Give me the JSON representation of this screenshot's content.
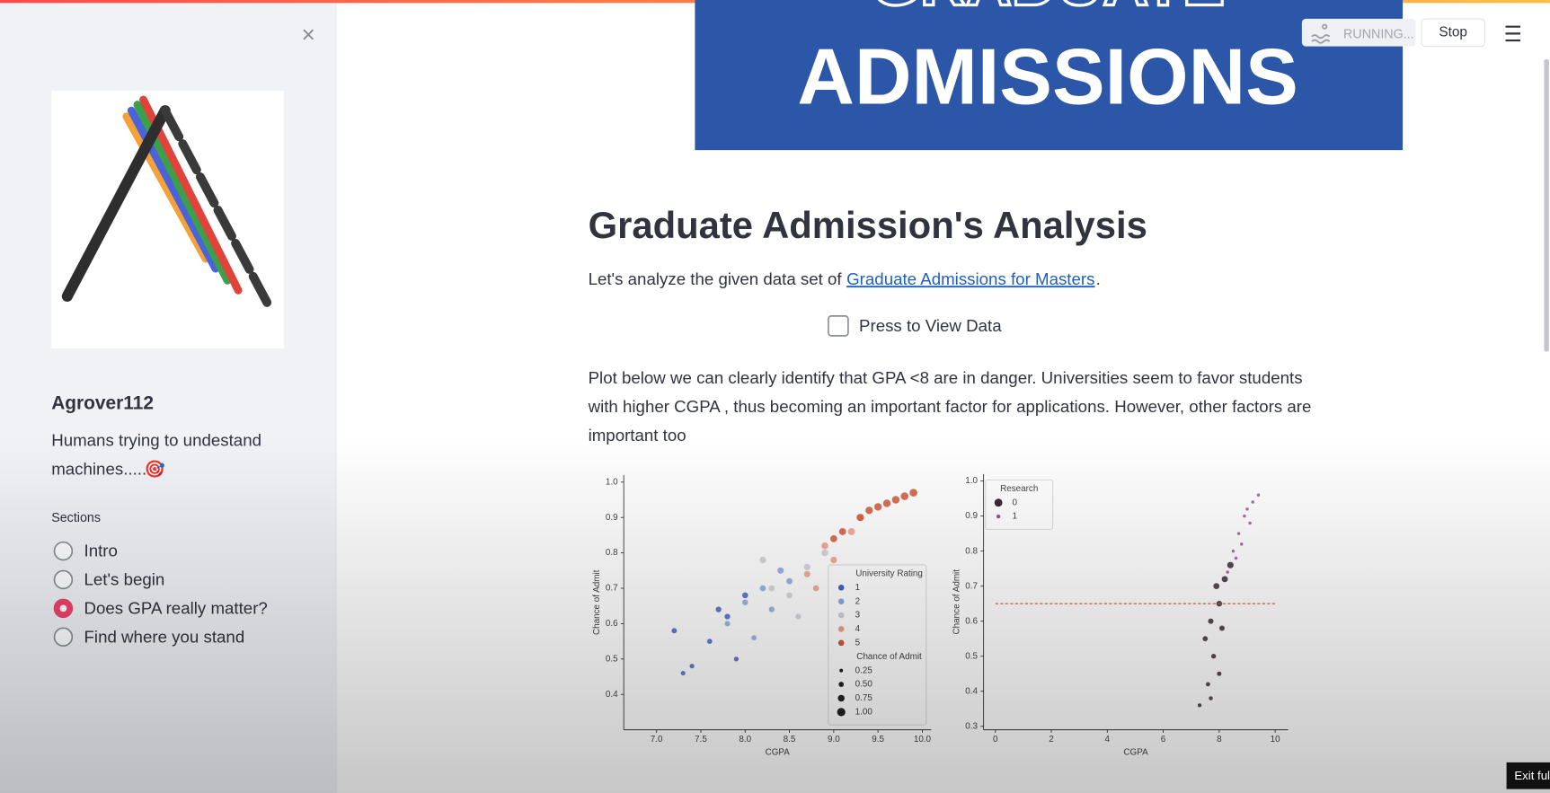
{
  "toolbar": {
    "status": "RUNNING...",
    "stop": "Stop"
  },
  "sidebar": {
    "close": "×",
    "username": "Agrover112",
    "bio": [
      "Humans trying to undestand",
      "machines....."
    ],
    "emoji": "🎯",
    "sections_label": "Sections",
    "options": [
      "Intro",
      "Let's begin",
      "Does GPA really matter?",
      "Find where you stand"
    ],
    "selected": 2
  },
  "banner": {
    "partial": "GRADUATE",
    "text": "ADMISSIONS"
  },
  "main": {
    "title": "Graduate Admission's Analysis",
    "intro_prefix": "Let's analyze the given data set of",
    "link": "Graduate Admissions for Masters",
    "intro_suffix": ".",
    "checkbox": "Press to View Data",
    "paragraph": [
      "Plot below we can clearly identify that GPA <8 are in danger. Universities seem to favor students",
      "with higher CGPA , thus becoming an important factor for applications. However, other factors are",
      "important too"
    ]
  },
  "chart_data": [
    {
      "type": "scatter",
      "x_label": "CGPA",
      "y_label": "Chance of Admit",
      "xlim": [
        6.63,
        10.1
      ],
      "ylim": [
        0.3,
        1.02
      ],
      "xticks": [
        {
          "value": 7,
          "label": "7.0"
        },
        7.5,
        {
          "value": 8,
          "label": "8.0"
        },
        8.5,
        {
          "value": 9,
          "label": "9.0"
        },
        9.5,
        {
          "value": 10,
          "label": "10.0"
        }
      ],
      "yticks": [
        0.4,
        0.5,
        0.6,
        0.7,
        0.8,
        0.9,
        {
          "value": 1,
          "label": "1.0"
        }
      ],
      "legend": "lower right",
      "legend_title": "University Rating",
      "series": [
        {
          "name": "1",
          "color": "#4a63c4",
          "x": [
            7.2,
            7.4,
            7.6,
            7.8,
            8.0,
            7.3,
            7.7,
            7.9
          ],
          "values": [
            0.58,
            0.48,
            0.55,
            0.62,
            0.68,
            0.46,
            0.64,
            0.5
          ]
        },
        {
          "name": "2",
          "color": "#8ea7e0",
          "x": [
            7.8,
            8.0,
            8.2,
            8.3,
            8.5,
            8.1,
            8.4
          ],
          "values": [
            0.6,
            0.66,
            0.7,
            0.64,
            0.72,
            0.56,
            0.75
          ]
        },
        {
          "name": "3",
          "color": "#cfcfd8",
          "x": [
            8.3,
            8.5,
            8.7,
            8.6,
            8.9,
            8.2
          ],
          "values": [
            0.7,
            0.68,
            0.76,
            0.62,
            0.8,
            0.78
          ]
        },
        {
          "name": "4",
          "color": "#eea08a",
          "x": [
            8.7,
            8.9,
            9.0,
            9.2,
            9.3,
            8.8
          ],
          "values": [
            0.74,
            0.82,
            0.78,
            0.86,
            0.9,
            0.7
          ]
        },
        {
          "name": "5",
          "color": "#d0583a",
          "x": [
            9.1,
            9.3,
            9.5,
            9.6,
            9.7,
            9.8,
            9.9,
            9.4,
            9.0
          ],
          "values": [
            0.86,
            0.9,
            0.93,
            0.94,
            0.95,
            0.96,
            0.97,
            0.92,
            0.84
          ]
        }
      ],
      "size_legend_title": "Chance of Admit",
      "size_legend": [
        0.25,
        {
          "value": 0.5,
          "label": "0.50"
        },
        0.75,
        {
          "value": 1,
          "label": "1.00"
        }
      ]
    },
    {
      "type": "scatter",
      "x_label": "CGPA",
      "y_label": "Chance of Admit",
      "xlim": [
        -0.42,
        10.46
      ],
      "ylim": [
        0.29,
        1.02
      ],
      "xticks": [
        0,
        2,
        4,
        6,
        8,
        10
      ],
      "yticks": [
        0.3,
        0.4,
        0.5,
        0.6,
        0.7,
        0.8,
        0.9,
        {
          "value": 1,
          "label": "1.0"
        }
      ],
      "legend": "upper left",
      "legend_title": "Research",
      "hline": 0.65,
      "series": [
        {
          "name": "0",
          "color": "#3a2a35",
          "x": [
            7.5,
            7.7,
            7.8,
            8.0,
            7.6,
            7.9,
            8.2,
            8.1,
            7.7,
            8.0,
            8.4,
            7.3
          ],
          "values": [
            0.55,
            0.6,
            0.5,
            0.65,
            0.42,
            0.7,
            0.72,
            0.58,
            0.38,
            0.45,
            0.76,
            0.36
          ]
        },
        {
          "name": "1",
          "color": "#a1508f",
          "x": [
            8.5,
            8.7,
            8.9,
            9.0,
            9.2,
            9.4,
            8.8,
            8.6,
            9.1,
            8.3
          ],
          "values": [
            0.8,
            0.85,
            0.9,
            0.92,
            0.94,
            0.96,
            0.82,
            0.78,
            0.88,
            0.74
          ]
        }
      ]
    }
  ],
  "exit": "Exit ful"
}
